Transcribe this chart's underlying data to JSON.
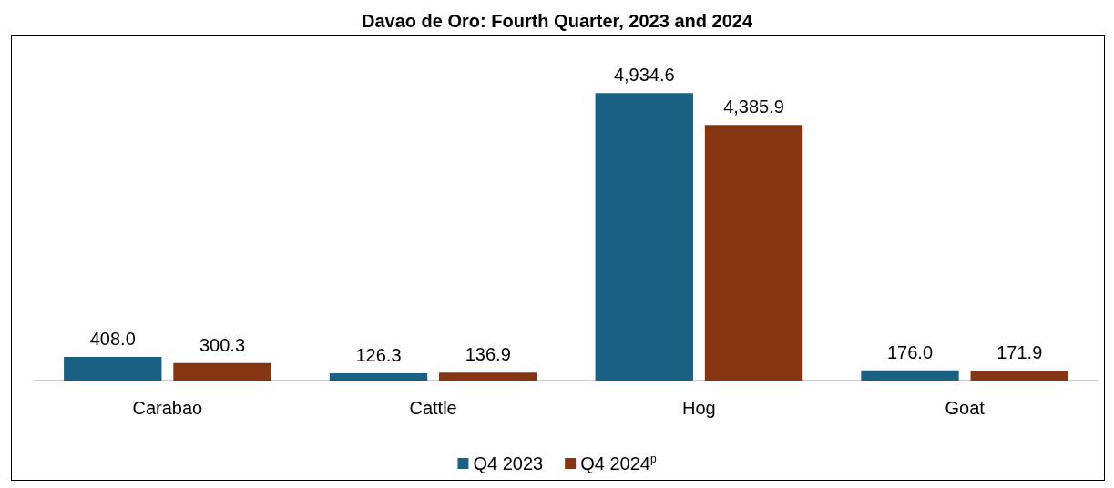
{
  "chart_data": {
    "type": "bar",
    "title": "Davao de Oro: Fourth Quarter, 2023 and 2024",
    "categories": [
      "Carabao",
      "Cattle",
      "Hog",
      "Goat"
    ],
    "series": [
      {
        "name": "Q4 2023",
        "color": "#1a6082",
        "values": [
          408.0,
          126.3,
          4934.6,
          176.0
        ],
        "value_labels": [
          "408.0",
          "126.3",
          "4,934.6",
          "176.0"
        ]
      },
      {
        "name": "Q4 2024$^{p}$",
        "color": "#843511",
        "values": [
          300.3,
          136.9,
          4385.9,
          171.9
        ],
        "value_labels": [
          "300.3",
          "136.9",
          "4,385.9",
          "171.9"
        ]
      }
    ],
    "legend": "bottom"
  }
}
